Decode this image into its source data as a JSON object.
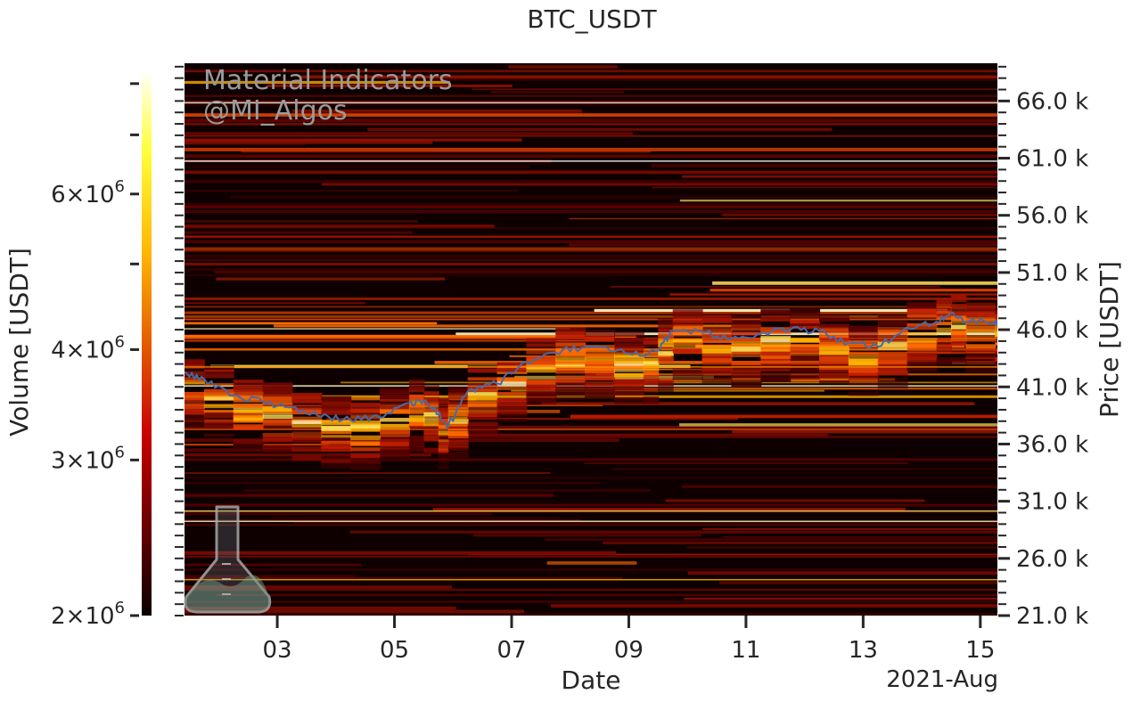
{
  "chart_data": {
    "type": "heatmap",
    "title": "BTC_USDT",
    "xlabel": "Date",
    "x_offset_label": "2021-Aug",
    "ylabel_right": "Price [USDT]",
    "colorbar_label": "Volume [USDT]",
    "colormap": "hot",
    "x_tick_labels": [
      "03",
      "05",
      "07",
      "09",
      "11",
      "13",
      "15"
    ],
    "x_tick_dates": [
      "2021-08-03",
      "2021-08-05",
      "2021-08-07",
      "2021-08-09",
      "2021-08-11",
      "2021-08-13",
      "2021-08-15"
    ],
    "xlim": [
      "2021-08-01 10:00",
      "2021-08-15 07:00"
    ],
    "y_tick_labels": [
      "21.0 k",
      "26.0 k",
      "31.0 k",
      "36.0 k",
      "41.0 k",
      "46.0 k",
      "51.0 k",
      "56.0 k",
      "61.0 k",
      "66.0 k"
    ],
    "y_tick_values": [
      21000,
      26000,
      31000,
      36000,
      41000,
      46000,
      51000,
      56000,
      61000,
      66000
    ],
    "ylim": [
      21000,
      69300
    ],
    "colorbar": {
      "scale": "log",
      "range": [
        2000000,
        8300000
      ],
      "tick_labels": [
        {
          "base": "2",
          "exp": "6",
          "value": 2000000
        },
        {
          "base": "3",
          "exp": "6",
          "value": 3000000
        },
        {
          "base": "4",
          "exp": "6",
          "value": 4000000
        },
        {
          "base": "6",
          "exp": "6",
          "value": 6000000
        }
      ],
      "tick_values": [
        2000000,
        3000000,
        4000000,
        5000000,
        6000000,
        7000000,
        8000000
      ]
    },
    "price_series": {
      "name": "price",
      "color": "#4a68a8",
      "points": [
        [
          "2021-08-01 10:00",
          42300
        ],
        [
          "2021-08-01 18:00",
          41700
        ],
        [
          "2021-08-02 06:00",
          40200
        ],
        [
          "2021-08-02 18:00",
          39700
        ],
        [
          "2021-08-03 06:00",
          39200
        ],
        [
          "2021-08-03 18:00",
          38400
        ],
        [
          "2021-08-04 06:00",
          38100
        ],
        [
          "2021-08-04 18:00",
          38300
        ],
        [
          "2021-08-05 06:00",
          39600
        ],
        [
          "2021-08-05 12:00",
          39800
        ],
        [
          "2021-08-05 18:00",
          38600
        ],
        [
          "2021-08-05 22:00",
          37600
        ],
        [
          "2021-08-06 06:00",
          40600
        ],
        [
          "2021-08-06 18:00",
          41300
        ],
        [
          "2021-08-07 06:00",
          43200
        ],
        [
          "2021-08-07 18:00",
          44000
        ],
        [
          "2021-08-08 06:00",
          44500
        ],
        [
          "2021-08-08 18:00",
          44100
        ],
        [
          "2021-08-09 06:00",
          43700
        ],
        [
          "2021-08-09 12:00",
          44200
        ],
        [
          "2021-08-09 18:00",
          45900
        ],
        [
          "2021-08-10 06:00",
          45800
        ],
        [
          "2021-08-10 18:00",
          45200
        ],
        [
          "2021-08-11 06:00",
          45700
        ],
        [
          "2021-08-11 18:00",
          46000
        ],
        [
          "2021-08-12 06:00",
          45900
        ],
        [
          "2021-08-12 18:00",
          44800
        ],
        [
          "2021-08-13 06:00",
          44500
        ],
        [
          "2021-08-13 18:00",
          46200
        ],
        [
          "2021-08-14 06:00",
          46700
        ],
        [
          "2021-08-14 12:00",
          47500
        ],
        [
          "2021-08-14 18:00",
          46700
        ],
        [
          "2021-08-15 06:00",
          46700
        ],
        [
          "2021-08-15 07:00",
          46500
        ]
      ]
    }
  },
  "watermark": {
    "line1": "Material Indicators",
    "line2": "@MI_Algos",
    "logo_icon": "flask-icon"
  }
}
